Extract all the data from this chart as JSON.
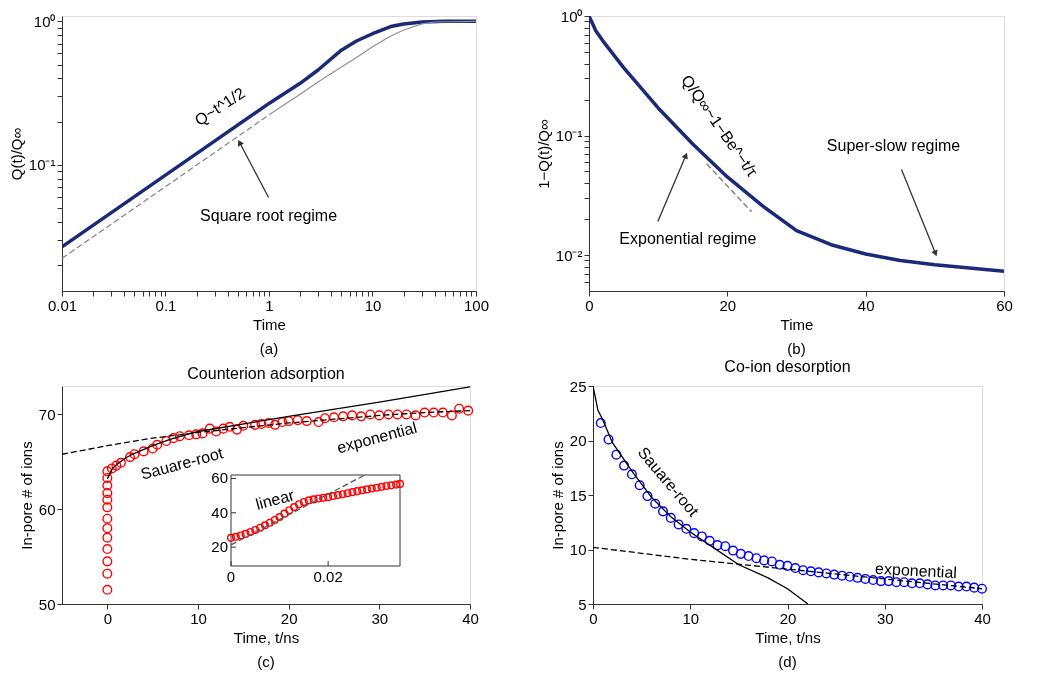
{
  "chart_data": [
    {
      "type": "line",
      "xlabel": "Time",
      "ylabel": "Q(t)/Q∞",
      "log": "xy",
      "grid": false,
      "xlim": [
        0.01,
        100
      ],
      "ylim": [
        0.0132,
        1.09
      ],
      "xticks": [
        0.01,
        {
          "value": 0.02,
          "label": null
        },
        {
          "value": 0.03,
          "label": null
        },
        {
          "value": 0.04,
          "label": null
        },
        {
          "value": 0.05,
          "label": null
        },
        {
          "value": 0.06,
          "label": null
        },
        {
          "value": 0.07,
          "label": null
        },
        {
          "value": 0.08,
          "label": null
        },
        {
          "value": 0.09,
          "label": null
        },
        0.1,
        {
          "value": 0.2,
          "label": null
        },
        {
          "value": 0.3,
          "label": null
        },
        {
          "value": 0.4,
          "label": null
        },
        {
          "value": 0.5,
          "label": null
        },
        {
          "value": 0.6,
          "label": null
        },
        {
          "value": 0.7,
          "label": null
        },
        {
          "value": 0.8,
          "label": null
        },
        {
          "value": 0.9,
          "label": null
        },
        1,
        {
          "value": 2,
          "label": null
        },
        {
          "value": 3,
          "label": null
        },
        {
          "value": 4,
          "label": null
        },
        {
          "value": 5,
          "label": null
        },
        {
          "value": 6,
          "label": null
        },
        {
          "value": 7,
          "label": null
        },
        {
          "value": 8,
          "label": null
        },
        {
          "value": 9,
          "label": null
        },
        10,
        {
          "value": 20,
          "label": null
        },
        {
          "value": 30,
          "label": null
        },
        {
          "value": 40,
          "label": null
        },
        {
          "value": 50,
          "label": null
        },
        {
          "value": 60,
          "label": null
        },
        {
          "value": 70,
          "label": null
        },
        {
          "value": 80,
          "label": null
        },
        {
          "value": 90,
          "label": null
        },
        100
      ],
      "yticks": [
        {
          "value": 0.02,
          "label": null
        },
        {
          "value": 0.03,
          "label": null
        },
        {
          "value": 0.04,
          "label": null
        },
        {
          "value": 0.05,
          "label": null
        },
        {
          "value": 0.06,
          "label": null
        },
        {
          "value": 0.07,
          "label": null
        },
        {
          "value": 0.08,
          "label": null
        },
        {
          "value": 0.09,
          "label": null
        },
        {
          "value": 0.1,
          "label": "10⁻¹"
        },
        {
          "value": 0.2,
          "label": null
        },
        {
          "value": 0.3,
          "label": null
        },
        {
          "value": 0.4,
          "label": null
        },
        {
          "value": 0.5,
          "label": null
        },
        {
          "value": 0.6,
          "label": null
        },
        {
          "value": 0.7,
          "label": null
        },
        {
          "value": 0.8,
          "label": null
        },
        {
          "value": 0.9,
          "label": null
        },
        {
          "value": 1,
          "label": "10⁰"
        }
      ],
      "series": [
        {
          "color": "#1a2a78",
          "line_style": "solid",
          "x": [
            0.01,
            0.03,
            0.1,
            0.3,
            1,
            2,
            3,
            5,
            7,
            10,
            15,
            20,
            30,
            50,
            100
          ],
          "values": [
            0.0268,
            0.0464,
            0.0848,
            0.147,
            0.268,
            0.37,
            0.46,
            0.63,
            0.73,
            0.82,
            0.92,
            0.96,
            0.99,
            1,
            1
          ]
        },
        {
          "color": "#909090",
          "line_style": "solid",
          "x": [
            1,
            2,
            3,
            5,
            7,
            10,
            15,
            20,
            30,
            40,
            100
          ],
          "values": [
            0.223,
            0.31,
            0.38,
            0.48,
            0.56,
            0.665,
            0.79,
            0.87,
            0.96,
            0.99,
            1
          ]
        },
        {
          "color": "#808080",
          "line_style": "dashed",
          "x": [
            0.01,
            1
          ],
          "values": [
            0.0223,
            0.223
          ]
        }
      ],
      "annotations": [
        "Q~t^1/2",
        {
          "text": "Square root regime",
          "x": 0.52,
          "y": 0.143
        },
        "(a)"
      ]
    },
    {
      "type": "line",
      "xlabel": "Time",
      "ylabel": "1−Q(t)/Q∞",
      "log": "y",
      "grid": false,
      "xlim": [
        0,
        60
      ],
      "ylim": [
        0.005,
        1
      ],
      "xticks": [
        0,
        20,
        40,
        60
      ],
      "yticks": [
        {
          "value": 0.006,
          "label": null
        },
        {
          "value": 0.007,
          "label": null
        },
        {
          "value": 0.008,
          "label": null
        },
        {
          "value": 0.009,
          "label": null
        },
        {
          "value": 0.01,
          "label": "10⁻²"
        },
        {
          "value": 0.02,
          "label": null
        },
        {
          "value": 0.03,
          "label": null
        },
        {
          "value": 0.04,
          "label": null
        },
        {
          "value": 0.05,
          "label": null
        },
        {
          "value": 0.06,
          "label": null
        },
        {
          "value": 0.07,
          "label": null
        },
        {
          "value": 0.08,
          "label": null
        },
        {
          "value": 0.09,
          "label": null
        },
        {
          "value": 0.1,
          "label": "10⁻¹"
        },
        {
          "value": 0.2,
          "label": null
        },
        {
          "value": 0.3,
          "label": null
        },
        {
          "value": 0.4,
          "label": null
        },
        {
          "value": 0.5,
          "label": null
        },
        {
          "value": 0.6,
          "label": null
        },
        {
          "value": 0.7,
          "label": null
        },
        {
          "value": 0.8,
          "label": null
        },
        {
          "value": 0.9,
          "label": null
        },
        {
          "value": 1,
          "label": "10⁰"
        }
      ],
      "series": [
        {
          "color": "#1a2a78",
          "line_style": "solid",
          "x": [
            0,
            1,
            2,
            5,
            10,
            15,
            20,
            25,
            30,
            35,
            40,
            45,
            50,
            55,
            60
          ],
          "values": [
            1,
            0.75,
            0.62,
            0.37,
            0.17,
            0.085,
            0.045,
            0.026,
            0.016,
            0.0122,
            0.0102,
            0.009,
            0.0083,
            0.0078,
            0.0073
          ]
        },
        {
          "color": "#808080",
          "line_style": "dashed",
          "x": [
            17,
            23.5
          ],
          "values": [
            0.058,
            0.023
          ]
        }
      ],
      "annotations": [
        "Q/Q∞~1−Be^−t/τ",
        {
          "text": "Exponential regime",
          "x": 14,
          "y": 0.068
        },
        {
          "text": "Super-slow regime",
          "x": 50.1,
          "y": 0.0103
        },
        "(b)"
      ]
    },
    {
      "type": "scatter",
      "title": "Counterion adsorption",
      "xlabel": "Time, t/ns",
      "ylabel": "In-pore # of ions",
      "grid": false,
      "xlim": [
        -5,
        40
      ],
      "ylim": [
        50,
        73
      ],
      "xticks": [
        0,
        10,
        20,
        30,
        40
      ],
      "yticks": [
        50,
        60,
        70
      ],
      "series": [
        {
          "color": "#ff0000",
          "marker": "circle",
          "x": [
            0,
            0,
            0,
            0,
            0,
            0,
            0,
            0,
            0,
            0,
            0,
            0,
            0,
            0.5,
            1,
            1.5,
            2.5,
            3,
            4,
            5,
            5.5,
            6.5,
            7.3,
            8,
            9,
            9.8,
            10.5,
            11.3,
            12,
            12.8,
            13.5,
            14.3,
            15,
            16.3,
            17,
            17.8,
            18.5,
            19.3,
            20,
            21,
            22,
            23.3,
            24,
            25,
            26,
            27,
            28,
            29,
            30,
            31,
            32,
            33,
            34,
            35,
            36,
            37,
            38,
            38.8,
            39.8
          ],
          "values": [
            51.5,
            53.2,
            54.5,
            55.8,
            57,
            58,
            59,
            60.2,
            61,
            61.7,
            62.5,
            63.3,
            64,
            64.3,
            64.6,
            64.9,
            65.5,
            65.8,
            66.1,
            66.4,
            66.8,
            67.2,
            67.5,
            67.7,
            67.8,
            67.9,
            68,
            68.5,
            68.2,
            68.5,
            68.7,
            68.4,
            68.8,
            68.9,
            69,
            69.1,
            68.9,
            69.2,
            69.3,
            69.4,
            69.3,
            69.2,
            69.6,
            69.7,
            69.8,
            69.9,
            69.8,
            70,
            69.9,
            70,
            70,
            70,
            69.9,
            70.2,
            70.2,
            70.2,
            69.9,
            70.6,
            70.4
          ]
        },
        {
          "type": "line",
          "color": "#000000",
          "line_style": "solid",
          "x": [
            0,
            0.5,
            1,
            2,
            3,
            5,
            7,
            10,
            20,
            30,
            40
          ],
          "values": [
            63.2,
            64.2,
            64.7,
            65.4,
            65.9,
            66.7,
            67.4,
            68.2,
            69.8,
            71.3,
            72.9
          ]
        },
        {
          "type": "line",
          "color": "#000000",
          "line_style": "dashed",
          "x": [
            -5,
            0,
            5,
            10,
            15,
            20,
            25,
            30,
            35,
            40
          ],
          "values": [
            65.8,
            66.7,
            67.5,
            68.1,
            68.6,
            69.1,
            69.5,
            69.9,
            70.2,
            70.4
          ]
        }
      ],
      "annotations": [
        "Sauare-root",
        "exponential",
        "(c)"
      ]
    },
    {
      "type": "scatter",
      "grid": false,
      "xlim": [
        0,
        0.0348
      ],
      "ylim": [
        9,
        62
      ],
      "xticks": [
        0,
        0.02
      ],
      "yticks": [
        20,
        40,
        60
      ],
      "series": [
        {
          "color": "#ff0000",
          "marker": "circle",
          "x": [
            0,
            0.001,
            0.002,
            0.003,
            0.004,
            0.005,
            0.006,
            0.007,
            0.008,
            0.009,
            0.01,
            0.011,
            0.012,
            0.013,
            0.014,
            0.015,
            0.016,
            0.017,
            0.018,
            0.019,
            0.02,
            0.021,
            0.022,
            0.023,
            0.024,
            0.025,
            0.026,
            0.027,
            0.028,
            0.029,
            0.03,
            0.031,
            0.032,
            0.033,
            0.034,
            0.0348
          ],
          "values": [
            25.4,
            26,
            26.8,
            27.7,
            28.8,
            30,
            31.3,
            32.7,
            34.2,
            35.8,
            37.5,
            39.5,
            41.5,
            43.3,
            45,
            46.3,
            47.2,
            47.8,
            48.3,
            48.7,
            49.1,
            49.7,
            50.3,
            50.8,
            51.4,
            52,
            52.6,
            53.1,
            53.6,
            54.1,
            54.6,
            55.1,
            55.6,
            56,
            56.4,
            56.8
          ]
        },
        {
          "type": "line",
          "color": "#555555",
          "line_style": "dashed",
          "x": [
            0,
            0.0275
          ],
          "values": [
            21.3,
            61.9
          ]
        }
      ],
      "annotations": [
        "linear"
      ]
    },
    {
      "type": "scatter",
      "title": "Co-ion desorption",
      "xlabel": "Time, t/ns",
      "ylabel": "In-pore # of ions",
      "grid": false,
      "xlim": [
        0,
        40
      ],
      "ylim": [
        5,
        25
      ],
      "xticks": [
        0,
        10,
        20,
        30,
        40
      ],
      "yticks": [
        5,
        10,
        15,
        20,
        25
      ],
      "series": [
        {
          "color": "#0000ff",
          "marker": "circle",
          "x": [
            0.8,
            1.6,
            2.4,
            3.2,
            4,
            4.8,
            5.6,
            6.4,
            7.2,
            8,
            8.8,
            9.6,
            10.4,
            11.2,
            12,
            12.8,
            13.6,
            14.4,
            15.2,
            16,
            16.8,
            17.6,
            18.4,
            19.2,
            20,
            20.8,
            21.6,
            22.4,
            23.2,
            24,
            24.8,
            25.6,
            26.4,
            27.2,
            28,
            28.8,
            29.6,
            30.4,
            31.2,
            32,
            32.8,
            33.6,
            34.4,
            35.2,
            36,
            36.8,
            37.6,
            38.4,
            39.2,
            40
          ],
          "values": [
            21.6,
            20.1,
            18.7,
            17.7,
            16.9,
            15.9,
            14.9,
            14.2,
            13.5,
            12.9,
            12.3,
            11.9,
            11.5,
            11.2,
            10.8,
            10.4,
            10.3,
            9.9,
            9.6,
            9.4,
            9.2,
            9,
            8.9,
            8.6,
            8.5,
            8.3,
            8.1,
            8,
            7.9,
            7.8,
            7.7,
            7.6,
            7.5,
            7.4,
            7.3,
            7.2,
            7.1,
            7.1,
            7,
            7,
            6.9,
            6.9,
            6.8,
            6.7,
            6.7,
            6.7,
            6.6,
            6.6,
            6.5,
            6.4
          ]
        },
        {
          "type": "line",
          "color": "#000000",
          "line_style": "solid",
          "x": [
            0,
            0.5,
            1,
            2,
            4,
            6,
            8,
            10,
            12,
            15,
            18,
            20,
            22.1
          ],
          "values": [
            25,
            22.8,
            21.9,
            19.8,
            17.2,
            14.8,
            13,
            11.6,
            10.4,
            8.6,
            7.4,
            6.4,
            5
          ]
        },
        {
          "type": "line",
          "color": "#000000",
          "line_style": "dashed",
          "x": [
            0,
            10,
            20,
            30,
            40
          ],
          "values": [
            10.2,
            9.1,
            8.2,
            7.3,
            6.4
          ]
        }
      ],
      "annotations": [
        "Sauare-root",
        "exponential",
        "(d)"
      ]
    }
  ]
}
